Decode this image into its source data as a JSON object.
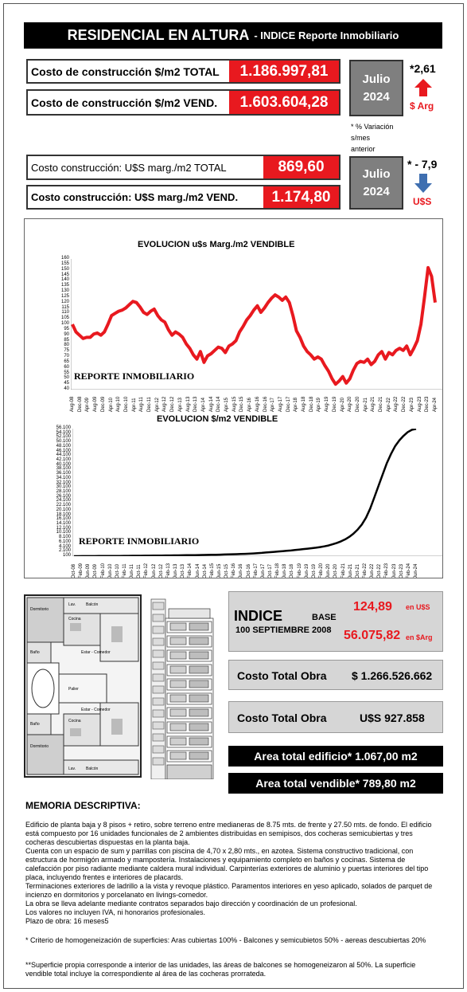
{
  "header": {
    "title": "RESIDENCIAL EN ALTURA",
    "subtitle": "-  INDICE Reporte Inmobiliario"
  },
  "pesos": {
    "total_label": "Costo de construcción $/m2 TOTAL",
    "total_value": "1.186.997,81",
    "vend_label": "Costo de construcción $/m2 VEND.",
    "vend_value": "1.603.604,28",
    "month": "Julio",
    "year": "2024",
    "pct": "*2,61",
    "currency": "$ Arg",
    "trend": "up"
  },
  "note": {
    "line1": "* % Variación",
    "line2": "s/mes",
    "line3": "anterior"
  },
  "usd": {
    "total_label": "Costo construcción: U$S marg./m2 TOTAL",
    "total_value": "869,60",
    "vend_label": "Costo construcción: U$S marg./m2 VEND.",
    "vend_value": "1.174,80",
    "month": "Julio",
    "year": "2024",
    "pct": "* - 7,9",
    "currency": "U$S",
    "trend": "down"
  },
  "colors": {
    "accent_red": "#e8191f",
    "box_gray": "#7f7f7f",
    "up_arrow": "#e8191f",
    "down_arrow": "#3f6fb0"
  },
  "chart_data": [
    {
      "type": "line",
      "title": "EVOLUCION u$s Marg./m2 VENDIBLE",
      "watermark": "REPORTE INMOBILIARIO",
      "ylim": [
        40,
        160
      ],
      "yticks": [
        "160",
        "155",
        "150",
        "145",
        "140",
        "135",
        "130",
        "125",
        "120",
        "115",
        "110",
        "105",
        "100",
        "95",
        "90",
        "85",
        "80",
        "75",
        "70",
        "65",
        "60",
        "55",
        "50",
        "45",
        "40"
      ],
      "xticks": [
        "Aug-08",
        "Dec-08",
        "Apr-09",
        "Aug-09",
        "Dec-09",
        "Apr-10",
        "Aug-10",
        "Dec-10",
        "Apr-11",
        "Aug-11",
        "Dec-11",
        "Apr-12",
        "Aug-12",
        "Dec-12",
        "Apr-13",
        "Aug-13",
        "Dec-13",
        "Apr-14",
        "Aug-14",
        "Dec-14",
        "Apr-15",
        "Aug-15",
        "Dec-15",
        "Apr-16",
        "Aug-16",
        "Dec-16",
        "Apr-17",
        "Aug-17",
        "Dec-17",
        "Apr-18",
        "Aug-18",
        "Dec-18",
        "Apr-19",
        "Aug-19",
        "Dec-19",
        "Apr-20",
        "Aug-20",
        "Dec-20",
        "Apr-21",
        "Aug-21",
        "Dec-21",
        "Apr-22",
        "Aug-22",
        "Dec-22",
        "Apr-23",
        "Aug-23",
        "Dec-23",
        "Apr-24"
      ],
      "series": [
        {
          "color": "#e8191f",
          "values": [
            100,
            93,
            90,
            87,
            88,
            88,
            91,
            92,
            90,
            93,
            100,
            108,
            110,
            112,
            113,
            115,
            118,
            121,
            120,
            116,
            111,
            109,
            112,
            114,
            108,
            104,
            102,
            95,
            90,
            93,
            91,
            88,
            82,
            78,
            72,
            68,
            75,
            65,
            71,
            73,
            76,
            79,
            78,
            74,
            80,
            82,
            85,
            93,
            98,
            104,
            108,
            113,
            117,
            111,
            115,
            120,
            124,
            127,
            125,
            122,
            125,
            120,
            108,
            94,
            88,
            80,
            75,
            72,
            68,
            70,
            68,
            62,
            57,
            50,
            45,
            48,
            52,
            46,
            50,
            58,
            64,
            66,
            65,
            68,
            63,
            66,
            72,
            75,
            68,
            74,
            72,
            76,
            78,
            76,
            80,
            72,
            78,
            85,
            100,
            125,
            152,
            144,
            120
          ]
        }
      ]
    },
    {
      "type": "line",
      "title": "EVOLUCION $/m2 VENDIBLE",
      "watermark": "REPORTE INMOBILIARIO",
      "ylim": [
        100,
        56100
      ],
      "yticks": [
        "56.100",
        "54.100",
        "52.100",
        "50.100",
        "48.100",
        "46.100",
        "44.100",
        "42.100",
        "40.100",
        "38.100",
        "36.100",
        "34.100",
        "32.100",
        "30.100",
        "28.100",
        "26.100",
        "24.100",
        "22.100",
        "20.100",
        "18.100",
        "16.100",
        "14.100",
        "12.100",
        "10.100",
        "8.100",
        "6.100",
        "4.100",
        "2.100",
        "100"
      ],
      "xticks": [
        "Oct-08",
        "Feb-09",
        "Jun-09",
        "Oct-09",
        "Feb-10",
        "Jun-10",
        "Oct-10",
        "Feb-11",
        "Jun-11",
        "Oct-11",
        "Feb-12",
        "Jun-12",
        "Oct-12",
        "Feb-13",
        "Jun-13",
        "Oct-13",
        "Feb-14",
        "Jun-14",
        "Oct-14",
        "Feb-15",
        "Jun-15",
        "Oct-15",
        "Feb-16",
        "Jun-16",
        "Oct-16",
        "Feb-17",
        "Jun-17",
        "Oct-17",
        "Feb-18",
        "Jun-18",
        "Oct-18",
        "Feb-19",
        "Jun-19",
        "Oct-19",
        "Feb-20",
        "Jun-20",
        "Oct-20",
        "Feb-21",
        "Jun-21",
        "Oct-21",
        "Feb-22",
        "Jun-22",
        "Oct-22",
        "Feb-23",
        "Jun-23",
        "Oct-23",
        "Feb-24",
        "Jun-24"
      ],
      "series": [
        {
          "color": "#000000",
          "values": [
            100,
            110,
            120,
            130,
            140,
            150,
            160,
            170,
            180,
            190,
            200,
            215,
            230,
            245,
            260,
            275,
            290,
            305,
            320,
            340,
            360,
            380,
            400,
            420,
            440,
            465,
            490,
            515,
            540,
            570,
            600,
            630,
            660,
            700,
            740,
            780,
            830,
            880,
            930,
            990,
            1050,
            1120,
            1200,
            1300,
            1420,
            1550,
            1700,
            1850,
            2000,
            2150,
            2300,
            2450,
            2600,
            2800,
            3000,
            3200,
            3400,
            3600,
            3800,
            4100,
            4400,
            4800,
            5300,
            5900,
            6600,
            7500,
            8600,
            10000,
            11800,
            14000,
            17000,
            21000,
            26000,
            31000,
            36000,
            41000,
            45000,
            48500,
            51000,
            53000,
            54600,
            55600,
            56000
          ]
        }
      ]
    }
  ],
  "indice": {
    "label": "INDICE",
    "base": "BASE",
    "base_date": "100 SEPTIEMBRE 2008",
    "usd_value": "124,89",
    "usd_unit": "en U$S",
    "ars_value": "56.075,82",
    "ars_unit": "en $Arg"
  },
  "costos": {
    "label1": "Costo Total Obra",
    "value1": "$ 1.266.526.662",
    "label2": "Costo Total Obra",
    "value2": "U$S 927.858"
  },
  "areas": {
    "edificio": "Area total edificio* 1.067,00 m2",
    "vendible": "Area total vendible* 789,80 m2"
  },
  "plan_labels": {
    "dormitorio": "Dormitorio",
    "balcon": "Balcón",
    "bano": "Baño",
    "cocina": "Cocina",
    "estar": "Estar - Comedor",
    "palier": "Palier",
    "lav": "Lav."
  },
  "memoria": {
    "title": "MEMORIA DESCRIPTIVA:",
    "p1": "Edificio de planta baja y 8 pisos + retiro, sobre terreno entre medianeras de 8.75 mts. de frente y 27.50 mts. de fondo. El edificio está compuesto por 16 unidades funcionales de 2 ambientes distribuidas en semipisos, dos cocheras semicubiertas y tres cocheras descubiertas dispuestas en la planta baja.",
    "p2": "Cuenta con un espacio de sum y parrillas con piscina de 4,70 x 2,80 mts., en azotea. Sistema constructivo tradicional, con estructura de hormigón armado y mampostería. Instalaciones y equipamiento completo en baños y cocinas. Sistema de calefacción por piso radiante mediante caldera mural individual. Carpinterías exteriores de aluminio y puertas interiores del tipo placa, incluyendo frentes e interiores de placards.",
    "p3": "Terminaciones exteriores de ladrillo a la vista y revoque plástico. Paramentos interiores en yeso aplicado, solados de parquet de incienzo en dormitorios y porcelanato en livings-comedor.",
    "p4": "La obra se lleva adelante mediante contratos separados bajo dirección y coordinación de un profesional.",
    "p5": "Los valores no incluyen IVA, ni honorarios profesionales.",
    "p6": "Plazo de obra: 16 meses5",
    "f1": "* Criterio de homogeneización de superficies: Aras cubiertas 100% - Balcones y semicubietos 50% - aereas descubiertas 20%",
    "f2": "**Superficie propia corresponde a interior de las unidades, las áreas de balcones se homogeneizaron al 50%. La superficie vendible total incluye la correspondiente al área de las cocheras prorrateda."
  }
}
